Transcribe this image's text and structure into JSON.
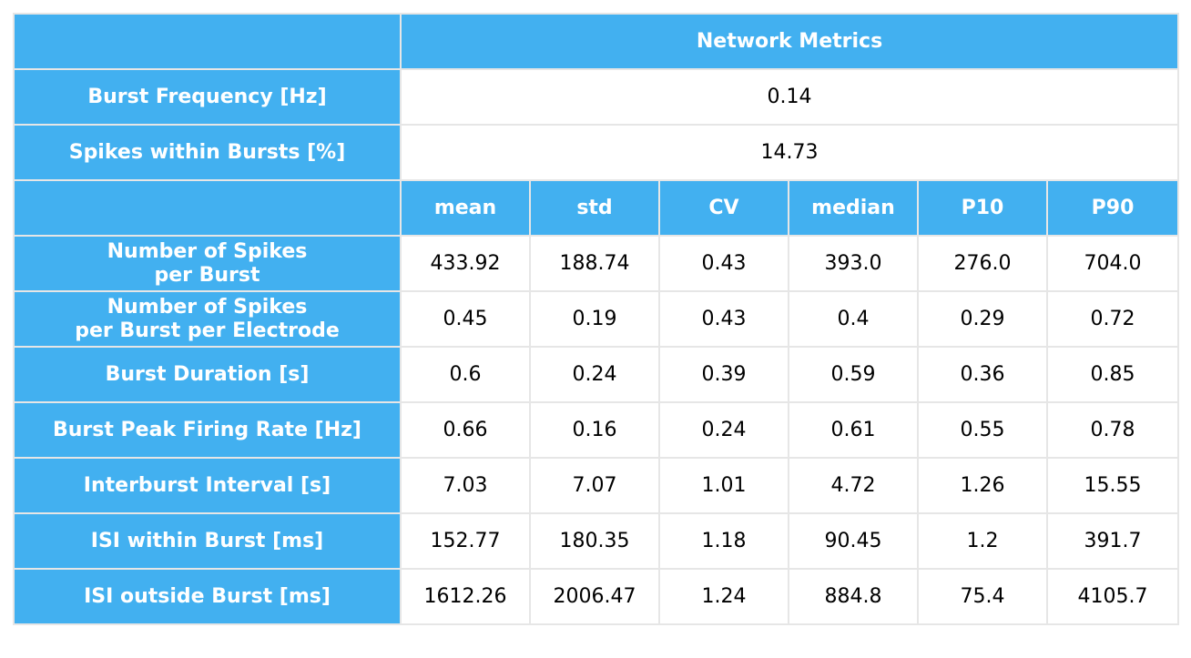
{
  "chart_data": {
    "type": "table",
    "header": "Network Metrics",
    "single_rows": [
      {
        "label": "Burst Frequency [Hz]",
        "value": "0.14"
      },
      {
        "label": "Spikes within Bursts [%]",
        "value": "14.73"
      }
    ],
    "columns": [
      "mean",
      "std",
      "CV",
      "median",
      "P10",
      "P90"
    ],
    "rows": [
      {
        "label_line1": "Number of Spikes",
        "label_line2": "per Burst",
        "values": [
          "433.92",
          "188.74",
          "0.43",
          "393.0",
          "276.0",
          "704.0"
        ]
      },
      {
        "label_line1": "Number of Spikes",
        "label_line2": "per Burst per Electrode",
        "values": [
          "0.45",
          "0.19",
          "0.43",
          "0.4",
          "0.29",
          "0.72"
        ]
      },
      {
        "label_line1": "Burst Duration [s]",
        "values": [
          "0.6",
          "0.24",
          "0.39",
          "0.59",
          "0.36",
          "0.85"
        ]
      },
      {
        "label_line1": "Burst Peak Firing Rate [Hz]",
        "values": [
          "0.66",
          "0.16",
          "0.24",
          "0.61",
          "0.55",
          "0.78"
        ]
      },
      {
        "label_line1": "Interburst Interval [s]",
        "values": [
          "7.03",
          "7.07",
          "1.01",
          "4.72",
          "1.26",
          "15.55"
        ]
      },
      {
        "label_line1": "ISI within Burst [ms]",
        "values": [
          "152.77",
          "180.35",
          "1.18",
          "90.45",
          "1.2",
          "391.7"
        ]
      },
      {
        "label_line1": "ISI outside Burst [ms]",
        "values": [
          "1612.26",
          "2006.47",
          "1.24",
          "884.8",
          "75.4",
          "4105.7"
        ]
      }
    ],
    "colors": {
      "header_bg": "#42b0f0",
      "header_text": "#ffffff",
      "grid": "#e6e6e6",
      "cell_text": "#000000"
    }
  }
}
